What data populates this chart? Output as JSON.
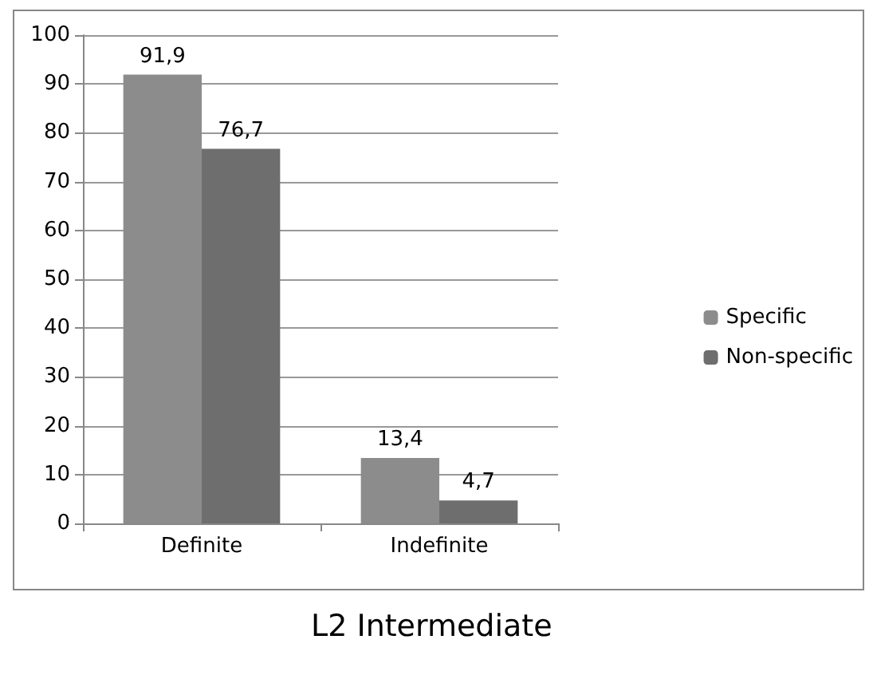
{
  "chart_data": {
    "type": "bar",
    "title": "L2 Intermediate",
    "categories": [
      "Definite",
      "Indefinite"
    ],
    "series": [
      {
        "name": "Specific",
        "color": "#8c8c8c",
        "values": [
          91.9,
          13.4
        ],
        "value_labels": [
          "91,9",
          "13,4"
        ]
      },
      {
        "name": "Non-specific",
        "color": "#6e6e6e",
        "values": [
          76.7,
          4.7
        ],
        "value_labels": [
          "76,7",
          "4,7"
        ]
      }
    ],
    "ylim": [
      0,
      100
    ],
    "yticks": [
      0,
      10,
      20,
      30,
      40,
      50,
      60,
      70,
      80,
      90,
      100
    ],
    "grid": "y",
    "legend": "right"
  }
}
